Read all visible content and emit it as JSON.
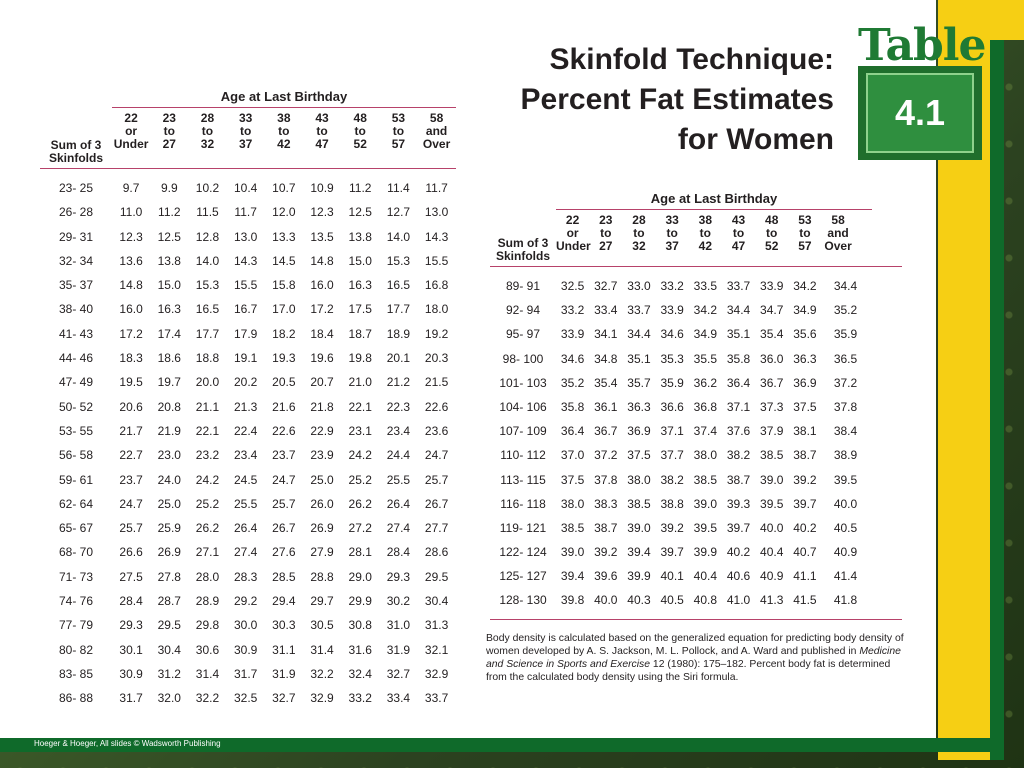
{
  "colors": {
    "accent_rule": "#b7426a",
    "badge_green": "#1f7a34",
    "stripe_yellow": "#f6cf14",
    "stripe_green": "#0f6a2a"
  },
  "title": {
    "line1": "Skinfold Technique:",
    "line2": "Percent Fat Estimates",
    "line3": "for Women"
  },
  "badge": {
    "word": "Table",
    "number": "4.1"
  },
  "age_header": "Age at Last Birthday",
  "column_headers": {
    "sum": [
      "Sum of 3",
      "Skinfolds"
    ],
    "ages": [
      [
        "22",
        "or",
        "Under"
      ],
      [
        "23",
        "to",
        "27"
      ],
      [
        "28",
        "to",
        "32"
      ],
      [
        "33",
        "to",
        "37"
      ],
      [
        "38",
        "to",
        "42"
      ],
      [
        "43",
        "to",
        "47"
      ],
      [
        "48",
        "to",
        "52"
      ],
      [
        "53",
        "to",
        "57"
      ],
      [
        "58",
        "and",
        "Over"
      ]
    ]
  },
  "left_table": {
    "rows": [
      {
        "sum": "23-  25",
        "values": [
          "9.7",
          "9.9",
          "10.2",
          "10.4",
          "10.7",
          "10.9",
          "11.2",
          "11.4",
          "11.7"
        ]
      },
      {
        "sum": "26-  28",
        "values": [
          "11.0",
          "11.2",
          "11.5",
          "11.7",
          "12.0",
          "12.3",
          "12.5",
          "12.7",
          "13.0"
        ]
      },
      {
        "sum": "29-  31",
        "values": [
          "12.3",
          "12.5",
          "12.8",
          "13.0",
          "13.3",
          "13.5",
          "13.8",
          "14.0",
          "14.3"
        ]
      },
      {
        "sum": "32-  34",
        "values": [
          "13.6",
          "13.8",
          "14.0",
          "14.3",
          "14.5",
          "14.8",
          "15.0",
          "15.3",
          "15.5"
        ]
      },
      {
        "sum": "35-  37",
        "values": [
          "14.8",
          "15.0",
          "15.3",
          "15.5",
          "15.8",
          "16.0",
          "16.3",
          "16.5",
          "16.8"
        ]
      },
      {
        "sum": "38-  40",
        "values": [
          "16.0",
          "16.3",
          "16.5",
          "16.7",
          "17.0",
          "17.2",
          "17.5",
          "17.7",
          "18.0"
        ]
      },
      {
        "sum": "41-  43",
        "values": [
          "17.2",
          "17.4",
          "17.7",
          "17.9",
          "18.2",
          "18.4",
          "18.7",
          "18.9",
          "19.2"
        ]
      },
      {
        "sum": "44-  46",
        "values": [
          "18.3",
          "18.6",
          "18.8",
          "19.1",
          "19.3",
          "19.6",
          "19.8",
          "20.1",
          "20.3"
        ]
      },
      {
        "sum": "47-  49",
        "values": [
          "19.5",
          "19.7",
          "20.0",
          "20.2",
          "20.5",
          "20.7",
          "21.0",
          "21.2",
          "21.5"
        ]
      },
      {
        "sum": "50-  52",
        "values": [
          "20.6",
          "20.8",
          "21.1",
          "21.3",
          "21.6",
          "21.8",
          "22.1",
          "22.3",
          "22.6"
        ]
      },
      {
        "sum": "53-  55",
        "values": [
          "21.7",
          "21.9",
          "22.1",
          "22.4",
          "22.6",
          "22.9",
          "23.1",
          "23.4",
          "23.6"
        ]
      },
      {
        "sum": "56-  58",
        "values": [
          "22.7",
          "23.0",
          "23.2",
          "23.4",
          "23.7",
          "23.9",
          "24.2",
          "24.4",
          "24.7"
        ]
      },
      {
        "sum": "59-  61",
        "values": [
          "23.7",
          "24.0",
          "24.2",
          "24.5",
          "24.7",
          "25.0",
          "25.2",
          "25.5",
          "25.7"
        ]
      },
      {
        "sum": "62-  64",
        "values": [
          "24.7",
          "25.0",
          "25.2",
          "25.5",
          "25.7",
          "26.0",
          "26.2",
          "26.4",
          "26.7"
        ]
      },
      {
        "sum": "65-  67",
        "values": [
          "25.7",
          "25.9",
          "26.2",
          "26.4",
          "26.7",
          "26.9",
          "27.2",
          "27.4",
          "27.7"
        ]
      },
      {
        "sum": "68-  70",
        "values": [
          "26.6",
          "26.9",
          "27.1",
          "27.4",
          "27.6",
          "27.9",
          "28.1",
          "28.4",
          "28.6"
        ]
      },
      {
        "sum": "71-  73",
        "values": [
          "27.5",
          "27.8",
          "28.0",
          "28.3",
          "28.5",
          "28.8",
          "29.0",
          "29.3",
          "29.5"
        ]
      },
      {
        "sum": "74-  76",
        "values": [
          "28.4",
          "28.7",
          "28.9",
          "29.2",
          "29.4",
          "29.7",
          "29.9",
          "30.2",
          "30.4"
        ]
      },
      {
        "sum": "77-  79",
        "values": [
          "29.3",
          "29.5",
          "29.8",
          "30.0",
          "30.3",
          "30.5",
          "30.8",
          "31.0",
          "31.3"
        ]
      },
      {
        "sum": "80-  82",
        "values": [
          "30.1",
          "30.4",
          "30.6",
          "30.9",
          "31.1",
          "31.4",
          "31.6",
          "31.9",
          "32.1"
        ]
      },
      {
        "sum": "83-  85",
        "values": [
          "30.9",
          "31.2",
          "31.4",
          "31.7",
          "31.9",
          "32.2",
          "32.4",
          "32.7",
          "32.9"
        ]
      },
      {
        "sum": "86-  88",
        "values": [
          "31.7",
          "32.0",
          "32.2",
          "32.5",
          "32.7",
          "32.9",
          "33.2",
          "33.4",
          "33.7"
        ]
      }
    ]
  },
  "right_table": {
    "rows": [
      {
        "sum": "89-  91",
        "values": [
          "32.5",
          "32.7",
          "33.0",
          "33.2",
          "33.5",
          "33.7",
          "33.9",
          "34.2",
          "34.4"
        ]
      },
      {
        "sum": "92-  94",
        "values": [
          "33.2",
          "33.4",
          "33.7",
          "33.9",
          "34.2",
          "34.4",
          "34.7",
          "34.9",
          "35.2"
        ]
      },
      {
        "sum": "95-  97",
        "values": [
          "33.9",
          "34.1",
          "34.4",
          "34.6",
          "34.9",
          "35.1",
          "35.4",
          "35.6",
          "35.9"
        ]
      },
      {
        "sum": "98- 100",
        "values": [
          "34.6",
          "34.8",
          "35.1",
          "35.3",
          "35.5",
          "35.8",
          "36.0",
          "36.3",
          "36.5"
        ]
      },
      {
        "sum": "101- 103",
        "values": [
          "35.2",
          "35.4",
          "35.7",
          "35.9",
          "36.2",
          "36.4",
          "36.7",
          "36.9",
          "37.2"
        ]
      },
      {
        "sum": "104- 106",
        "values": [
          "35.8",
          "36.1",
          "36.3",
          "36.6",
          "36.8",
          "37.1",
          "37.3",
          "37.5",
          "37.8"
        ]
      },
      {
        "sum": "107- 109",
        "values": [
          "36.4",
          "36.7",
          "36.9",
          "37.1",
          "37.4",
          "37.6",
          "37.9",
          "38.1",
          "38.4"
        ]
      },
      {
        "sum": "110- 112",
        "values": [
          "37.0",
          "37.2",
          "37.5",
          "37.7",
          "38.0",
          "38.2",
          "38.5",
          "38.7",
          "38.9"
        ]
      },
      {
        "sum": "113- 115",
        "values": [
          "37.5",
          "37.8",
          "38.0",
          "38.2",
          "38.5",
          "38.7",
          "39.0",
          "39.2",
          "39.5"
        ]
      },
      {
        "sum": "116- 118",
        "values": [
          "38.0",
          "38.3",
          "38.5",
          "38.8",
          "39.0",
          "39.3",
          "39.5",
          "39.7",
          "40.0"
        ]
      },
      {
        "sum": "119- 121",
        "values": [
          "38.5",
          "38.7",
          "39.0",
          "39.2",
          "39.5",
          "39.7",
          "40.0",
          "40.2",
          "40.5"
        ]
      },
      {
        "sum": "122- 124",
        "values": [
          "39.0",
          "39.2",
          "39.4",
          "39.7",
          "39.9",
          "40.2",
          "40.4",
          "40.7",
          "40.9"
        ]
      },
      {
        "sum": "125- 127",
        "values": [
          "39.4",
          "39.6",
          "39.9",
          "40.1",
          "40.4",
          "40.6",
          "40.9",
          "41.1",
          "41.4"
        ]
      },
      {
        "sum": "128- 130",
        "values": [
          "39.8",
          "40.0",
          "40.3",
          "40.5",
          "40.8",
          "41.0",
          "41.3",
          "41.5",
          "41.8"
        ]
      }
    ]
  },
  "footnote": {
    "part1": "Body density is calculated based on the generalized equation for predicting body density of women developed by A. S. Jackson, M. L. Pollock, and A. Ward and published in ",
    "journal": "Medicine and Science in Sports and Exercise",
    "part2": " 12 (1980): 175–182. Percent body fat is determined from the calculated body density using the Siri formula."
  },
  "credit": "Hoeger & Hoeger, All slides © Wadsworth Publishing"
}
